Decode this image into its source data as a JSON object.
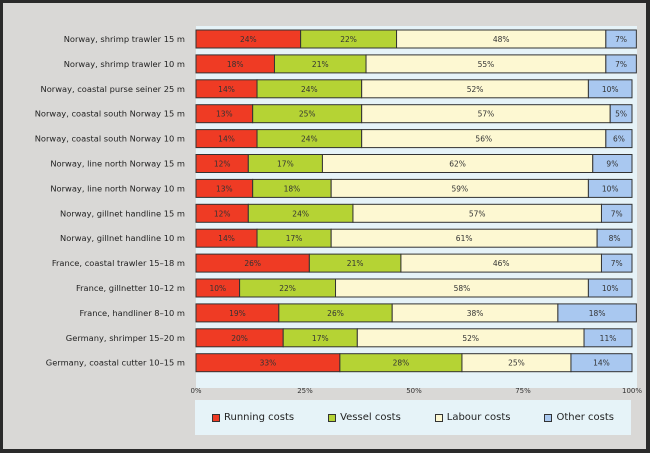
{
  "chart_data": {
    "type": "bar",
    "orientation": "horizontal",
    "stacked": true,
    "title": "",
    "xlabel": "",
    "ylabel": "",
    "xlim": [
      0,
      100
    ],
    "x_ticks": [
      "0%",
      "25%",
      "50%",
      "75%",
      "100%"
    ],
    "x_tick_values": [
      0,
      25,
      50,
      75,
      100
    ],
    "legend_position": "bottom",
    "categories": [
      "Norway, shrimp trawler 15 m",
      "Norway, shrimp trawler 10 m",
      "Norway, coastal purse seiner 25 m",
      "Norway, coastal south Norway 15 m",
      "Norway, coastal south Norway 10 m",
      "Norway, line north Norway 15 m",
      "Norway, line north Norway 10 m",
      "Norway, gillnet handline 15 m",
      "Norway, gillnet handline 10 m",
      "France, coastal trawler 15–18 m",
      "France, gillnetter 10–12 m",
      "France, handliner 8–10 m",
      "Germany, shrimper 15–20 m",
      "Germany, coastal cutter 10–15 m"
    ],
    "series": [
      {
        "name": "Running costs",
        "color": "#ef3b24",
        "values": [
          24,
          18,
          14,
          13,
          14,
          12,
          13,
          12,
          14,
          26,
          10,
          19,
          20,
          33
        ]
      },
      {
        "name": "Vessel costs",
        "color": "#b5d334",
        "values": [
          22,
          21,
          24,
          25,
          24,
          17,
          18,
          24,
          17,
          21,
          22,
          26,
          17,
          28
        ]
      },
      {
        "name": "Labour costs",
        "color": "#fdf8d2",
        "values": [
          48,
          55,
          52,
          57,
          56,
          62,
          59,
          57,
          61,
          46,
          58,
          38,
          52,
          25
        ]
      },
      {
        "name": "Other costs",
        "color": "#a9c8f0",
        "values": [
          7,
          7,
          10,
          5,
          6,
          9,
          10,
          7,
          8,
          7,
          10,
          18,
          11,
          14
        ]
      }
    ]
  }
}
